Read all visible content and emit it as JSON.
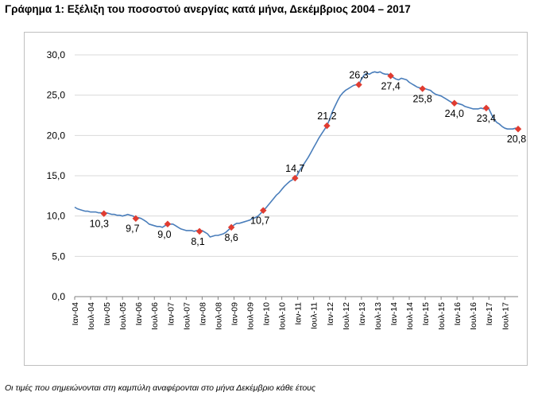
{
  "chart_data": {
    "type": "line",
    "title": "Γράφημα 1: Εξέλιξη του ποσοστού ανεργίας κατά μήνα, Δεκέμβριος 2004 – 2017",
    "note": "Οι τιμές που σημειώνονται στη καμπύλη αναφέρονται στο μήνα Δεκέμβριο κάθε έτους",
    "ylim": [
      0,
      30
    ],
    "yticks": [
      "0,0",
      "5,0",
      "10,0",
      "15,0",
      "20,0",
      "25,0",
      "30,0"
    ],
    "xticks": [
      "Ιαν-04",
      "Ιουλ-04",
      "Ιαν-05",
      "Ιουλ-05",
      "Ιαν-06",
      "Ιουλ-06",
      "Ιαν-07",
      "Ιουλ-07",
      "Ιαν-08",
      "Ιουλ-08",
      "Ιαν-09",
      "Ιουλ-09",
      "Ιαν-10",
      "Ιουλ-10",
      "Ιαν-11",
      "Ιουλ-11",
      "Ιαν-12",
      "Ιουλ-12",
      "Ιαν-13",
      "Ιουλ-13",
      "Ιαν-14",
      "Ιουλ-14",
      "Ιαν-15",
      "Ιουλ-15",
      "Ιαν-16",
      "Ιουλ-16",
      "Ιαν-17",
      "Ιουλ-17"
    ],
    "grid": true,
    "line_color": "#4a7ebb",
    "marker_color": "#e03c31",
    "series": [
      {
        "x_start": "Ιαν-04",
        "monthly_values": [
          11.1,
          10.9,
          10.8,
          10.7,
          10.6,
          10.6,
          10.5,
          10.5,
          10.5,
          10.4,
          10.4,
          10.3,
          10.4,
          10.3,
          10.2,
          10.2,
          10.1,
          10.1,
          10.0,
          10.1,
          10.2,
          10.1,
          10.0,
          9.7,
          9.8,
          9.7,
          9.5,
          9.3,
          9.0,
          8.9,
          8.8,
          8.7,
          8.7,
          8.6,
          8.8,
          9.0,
          9.0,
          9.0,
          8.8,
          8.6,
          8.4,
          8.3,
          8.2,
          8.2,
          8.2,
          8.1,
          8.2,
          8.1,
          8.2,
          8.0,
          7.8,
          7.4,
          7.5,
          7.6,
          7.6,
          7.7,
          7.8,
          8.0,
          8.3,
          8.6,
          8.9,
          9.1,
          9.1,
          9.2,
          9.3,
          9.4,
          9.5,
          9.7,
          9.8,
          10.0,
          10.3,
          10.7,
          11.0,
          11.4,
          11.8,
          12.2,
          12.6,
          12.9,
          13.3,
          13.7,
          14.0,
          14.3,
          14.5,
          14.7,
          15.2,
          15.8,
          16.3,
          16.8,
          17.3,
          17.9,
          18.5,
          19.1,
          19.7,
          20.2,
          20.7,
          21.2,
          22.0,
          22.9,
          23.6,
          24.3,
          24.9,
          25.3,
          25.6,
          25.8,
          26.0,
          26.2,
          26.3,
          26.3,
          27.0,
          27.5,
          27.7,
          27.6,
          27.8,
          27.9,
          27.8,
          27.9,
          27.7,
          27.6,
          27.6,
          27.4,
          27.2,
          27.0,
          26.9,
          27.1,
          27.0,
          26.9,
          26.6,
          26.4,
          26.2,
          26.0,
          25.9,
          25.8,
          25.8,
          25.7,
          25.6,
          25.3,
          25.1,
          25.0,
          24.9,
          24.7,
          24.5,
          24.3,
          24.1,
          24.0,
          24.0,
          23.9,
          23.8,
          23.6,
          23.5,
          23.4,
          23.3,
          23.3,
          23.3,
          23.4,
          23.3,
          23.4,
          23.3,
          22.6,
          22.0,
          21.6,
          21.4,
          21.1,
          20.9,
          20.8,
          20.8,
          20.8,
          20.9,
          20.8
        ]
      }
    ],
    "december_labels": [
      {
        "x": "Δεκ-04",
        "value": 10.3,
        "label": "10,3"
      },
      {
        "x": "Δεκ-05",
        "value": 9.7,
        "label": "9,7"
      },
      {
        "x": "Δεκ-06",
        "value": 9.0,
        "label": "9,0"
      },
      {
        "x": "Δεκ-07",
        "value": 8.1,
        "label": "8,1"
      },
      {
        "x": "Δεκ-08",
        "value": 8.6,
        "label": "8,6"
      },
      {
        "x": "Δεκ-09",
        "value": 10.7,
        "label": "10,7"
      },
      {
        "x": "Δεκ-10",
        "value": 14.7,
        "label": "14,7"
      },
      {
        "x": "Δεκ-11",
        "value": 21.2,
        "label": "21,2"
      },
      {
        "x": "Δεκ-12",
        "value": 26.3,
        "label": "26,3"
      },
      {
        "x": "Δεκ-13",
        "value": 27.4,
        "label": "27,4"
      },
      {
        "x": "Δεκ-14",
        "value": 25.8,
        "label": "25,8"
      },
      {
        "x": "Δεκ-15",
        "value": 24.0,
        "label": "24,0"
      },
      {
        "x": "Δεκ-16",
        "value": 23.4,
        "label": "23,4"
      },
      {
        "x": "Δεκ-17",
        "value": 20.8,
        "label": "20,8"
      }
    ]
  }
}
